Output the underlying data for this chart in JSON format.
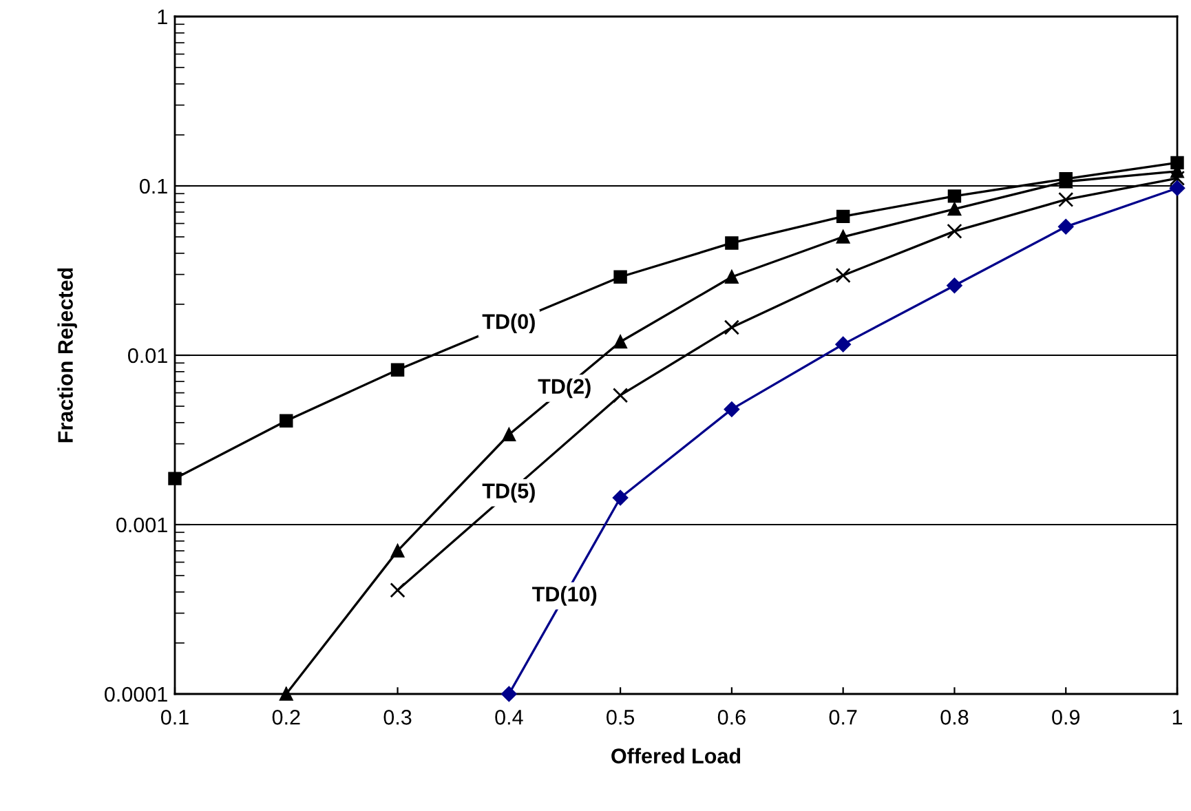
{
  "chart_data": {
    "type": "line",
    "xlabel": "Offered Load",
    "ylabel": "Fraction Rejected",
    "log": "y",
    "grid": "y",
    "xlim": [
      0.1,
      1
    ],
    "xticks": [
      0.1,
      0.2,
      0.3,
      0.4,
      0.5,
      0.6,
      0.7,
      0.8,
      0.9,
      1
    ],
    "ylim": [
      0.0001,
      1
    ],
    "yticks": [
      0.0001,
      0.001,
      0.01,
      0.1,
      1
    ],
    "series": [
      {
        "name": "TD(0)",
        "color": "#000000",
        "marker": "square",
        "x": [
          0.1,
          0.2,
          0.3,
          0.5,
          0.6,
          0.7,
          0.8,
          0.9,
          1
        ],
        "values": [
          0.00187,
          0.0041,
          0.0082,
          0.029,
          0.046,
          0.066,
          0.087,
          0.11,
          0.137
        ]
      },
      {
        "name": "TD(2)",
        "color": "#000000",
        "marker": "triangle",
        "x": [
          0.2,
          0.3,
          0.4,
          0.5,
          0.6,
          0.7,
          0.8,
          0.9,
          1
        ],
        "values": [
          0.0001,
          0.0007,
          0.0034,
          0.012,
          0.029,
          0.05,
          0.073,
          0.106,
          0.122
        ]
      },
      {
        "name": "TD(5)",
        "color": "#000000",
        "marker": "cross",
        "x": [
          0.3,
          0.5,
          0.6,
          0.7,
          0.8,
          0.9,
          1
        ],
        "values": [
          0.00041,
          0.0058,
          0.0146,
          0.0296,
          0.054,
          0.083,
          0.111
        ]
      },
      {
        "name": "TD(10)",
        "color": "#00008b",
        "marker": "diamond",
        "x": [
          0.4,
          0.5,
          0.6,
          0.7,
          0.8,
          0.9,
          1
        ],
        "values": [
          0.0001,
          0.00144,
          0.0048,
          0.0116,
          0.0258,
          0.0574,
          0.097
        ]
      }
    ]
  }
}
